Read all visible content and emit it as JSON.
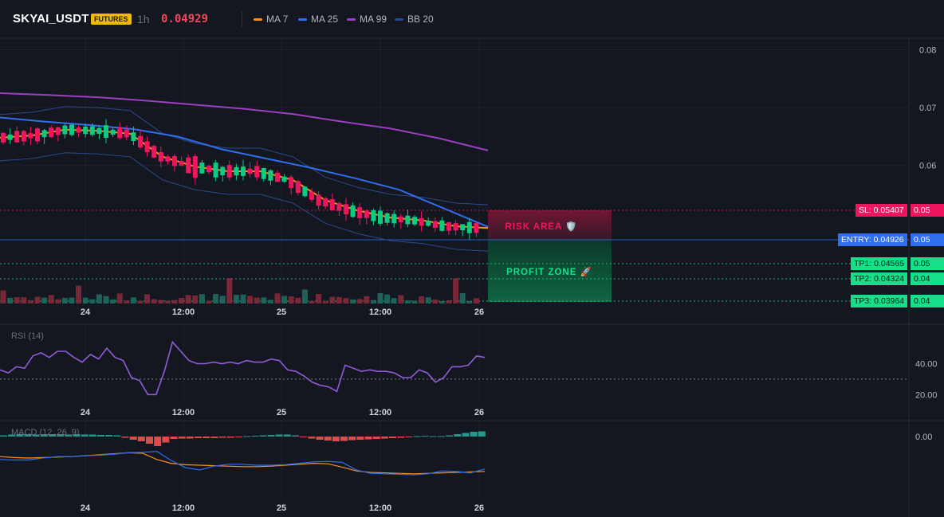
{
  "header": {
    "symbol": "SKYAI_USDT",
    "badge": "FUTURES",
    "timeframe": "1h",
    "price": "0.04929",
    "legend": [
      {
        "label": "MA 7",
        "color": "#f7931a"
      },
      {
        "label": "MA 25",
        "color": "#2f6fed"
      },
      {
        "label": "MA 99",
        "color": "#9c3fc0"
      },
      {
        "label": "BB 20",
        "color": "#2a4a8c"
      }
    ]
  },
  "chart_data": [
    {
      "type": "candlestick",
      "ylim": [
        0.036,
        0.082
      ],
      "y_ticks": [
        "0.08",
        "0.07",
        "0.06",
        "0.05",
        "0.05",
        "0.05",
        "0.04"
      ],
      "x_ticks": [
        "24",
        "12:00",
        "25",
        "12:00",
        "26"
      ],
      "grid": true,
      "ma99": [
        0.0725,
        0.0722,
        0.0718,
        0.0712,
        0.0705,
        0.0698,
        0.0689,
        0.0676,
        0.0664,
        0.0647,
        0.0626
      ],
      "ma25": [
        0.0683,
        0.0676,
        0.067,
        0.0663,
        0.065,
        0.0628,
        0.0612,
        0.0596,
        0.0578,
        0.0558,
        0.0526,
        0.0494
      ],
      "ma7": [
        0.0648,
        0.0652,
        0.0662,
        0.066,
        0.0655,
        0.0615,
        0.0598,
        0.059,
        0.059,
        0.0575,
        0.054,
        0.0522,
        0.051,
        0.0505,
        0.0495,
        0.0492
      ],
      "trade_zones": {
        "risk_label": "RISK AREA 🛡️",
        "profit_label": "PROFIT ZONE 🚀",
        "levels": [
          {
            "label": "SL: 0.05407",
            "axis": "0.05",
            "value": 0.05407,
            "color": "#f0165d"
          },
          {
            "label": "ENTRY: 0.04926",
            "axis": "0.05",
            "value": 0.04926,
            "color": "#2f6fed"
          },
          {
            "label": "TP1: 0.04565",
            "axis": "0.05",
            "value": 0.04565,
            "color": "#14e08a"
          },
          {
            "label": "TP2: 0.04324",
            "axis": "0.04",
            "value": 0.04324,
            "color": "#14e08a"
          },
          {
            "label": "TP3: 0.03964",
            "axis": "0.04",
            "value": 0.03964,
            "color": "#14e08a"
          }
        ]
      }
    },
    {
      "type": "line",
      "title": "RSI (14)",
      "ylim": [
        15,
        65
      ],
      "y_ticks": [
        "40.00",
        "20.00"
      ],
      "x_ticks": [
        "24",
        "12:00",
        "25",
        "12:00",
        "26"
      ],
      "reference_line": 30,
      "values": [
        36,
        34,
        38,
        37,
        45,
        47,
        44,
        48,
        48,
        44,
        41,
        46,
        43,
        50,
        44,
        42,
        31,
        29,
        20,
        20,
        35,
        54,
        48,
        42,
        40,
        40,
        41,
        40,
        41,
        40,
        42,
        41,
        41,
        43,
        42,
        36,
        35,
        32,
        28,
        26,
        25,
        22,
        39,
        37,
        35,
        36,
        35,
        35,
        34,
        31,
        31,
        36,
        34,
        28,
        31,
        38,
        38,
        39,
        45,
        44
      ]
    },
    {
      "type": "bar",
      "title": "MACD (12, 26, 9)",
      "y_ticks": [
        "0.00"
      ],
      "x_ticks": [
        "24",
        "12:00",
        "25",
        "12:00",
        "26"
      ],
      "histogram": [
        0.3,
        0.5,
        0.6,
        0.6,
        0.5,
        0.6,
        0.6,
        0.6,
        0.5,
        0.6,
        0.5,
        0.5,
        0.4,
        0.4,
        0.3,
        -0.3,
        -0.8,
        -1.2,
        -1.8,
        -2.4,
        -1.5,
        -0.6,
        -0.5,
        -0.5,
        -0.4,
        -0.4,
        -0.4,
        -0.3,
        -0.3,
        -0.2,
        0.1,
        0.2,
        0.3,
        0.4,
        0.5,
        0.5,
        0.3,
        -0.2,
        -0.5,
        -0.8,
        -1.0,
        -1.2,
        -1.1,
        -0.9,
        -0.8,
        -0.7,
        -0.6,
        -0.5,
        -0.4,
        -0.3,
        -0.2,
        0.1,
        0.2,
        0.1,
        0.1,
        0.3,
        0.6,
        0.9,
        1.2,
        1.3
      ],
      "macd_line": [
        -2.8,
        -2.9,
        -2.9,
        -2.5,
        -2.2,
        -2.2,
        -2.0,
        -1.9,
        -1.7,
        -1.4,
        -1.3,
        -1.1,
        -3.0,
        -4.5,
        -5.0,
        -4.2,
        -3.8,
        -3.8,
        -4.0,
        -4.0,
        -3.9,
        -3.6,
        -3.3,
        -3.2,
        -3.4,
        -5.0,
        -5.7,
        -5.8,
        -5.9,
        -6.0,
        -5.8,
        -5.2,
        -5.3,
        -5.6,
        -4.8
      ],
      "signal_line": [
        -2.2,
        -2.4,
        -2.5,
        -2.4,
        -2.3,
        -2.2,
        -2.0,
        -1.8,
        -1.6,
        -1.4,
        -1.5,
        -2.8,
        -3.6,
        -3.9,
        -4.0,
        -4.1,
        -4.2,
        -4.3,
        -4.3,
        -4.2,
        -4.0,
        -3.8,
        -3.6,
        -3.7,
        -4.4,
        -5.2,
        -5.5,
        -5.6,
        -5.7,
        -5.8,
        -5.7,
        -5.6,
        -5.5,
        -5.4,
        -5.3
      ]
    }
  ]
}
